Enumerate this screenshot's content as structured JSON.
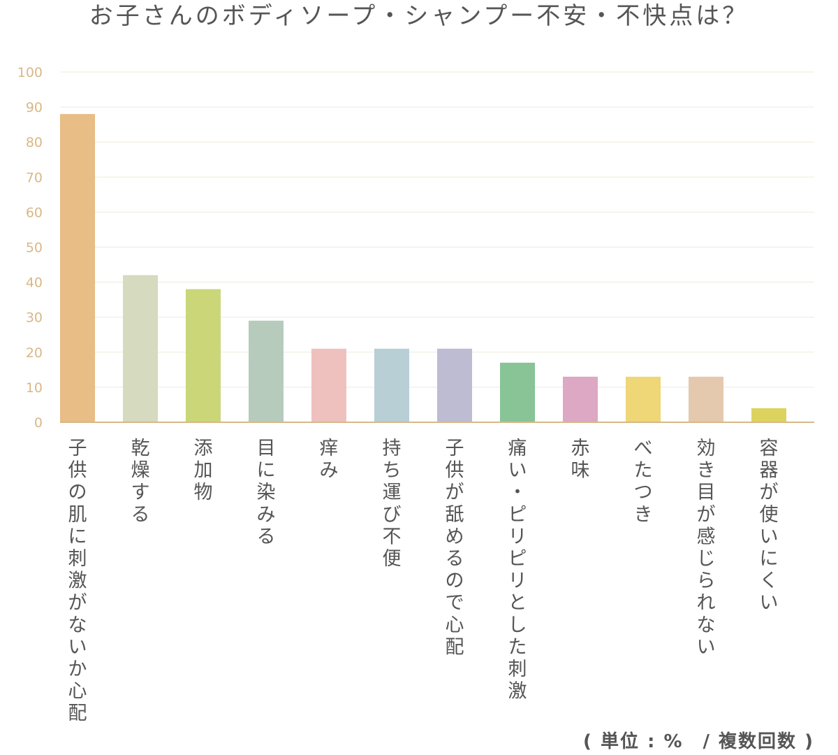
{
  "chart_data": {
    "type": "bar",
    "title": "お子さんのボディソープ・シャンプー不安・不快点は？",
    "unit_note": "( 単位 : %　/ 複数回数 )",
    "ylim": [
      0,
      100
    ],
    "yticks": [
      0,
      10,
      20,
      30,
      40,
      50,
      60,
      70,
      80,
      90,
      100
    ],
    "grid": true,
    "legend": "none",
    "categories": [
      "子供の肌に刺激がないか心配",
      "乾燥する",
      "添加物",
      "目に染みる",
      "痒み",
      "持ち運び不便",
      "子供が舐めるので心配",
      "痛い・ピリピリとした刺激",
      "赤味",
      "べたつき",
      "効き目が感じられない",
      "容器が使いにくい"
    ],
    "values": [
      88,
      42,
      38,
      29,
      21,
      21,
      21,
      17,
      13,
      13,
      13,
      4
    ],
    "colors": [
      "#E8BD86",
      "#D6DABE",
      "#CBD678",
      "#B7CBBC",
      "#EEC1BF",
      "#B8CFD6",
      "#BDBCD3",
      "#88C495",
      "#DCA8C3",
      "#EFD676",
      "#E4C9AE",
      "#DCD35E"
    ],
    "axis_color": "#D8B887",
    "grid_color": "#EDEADB",
    "tick_label_color": "#D8B887",
    "category_label_color": "#555555"
  }
}
